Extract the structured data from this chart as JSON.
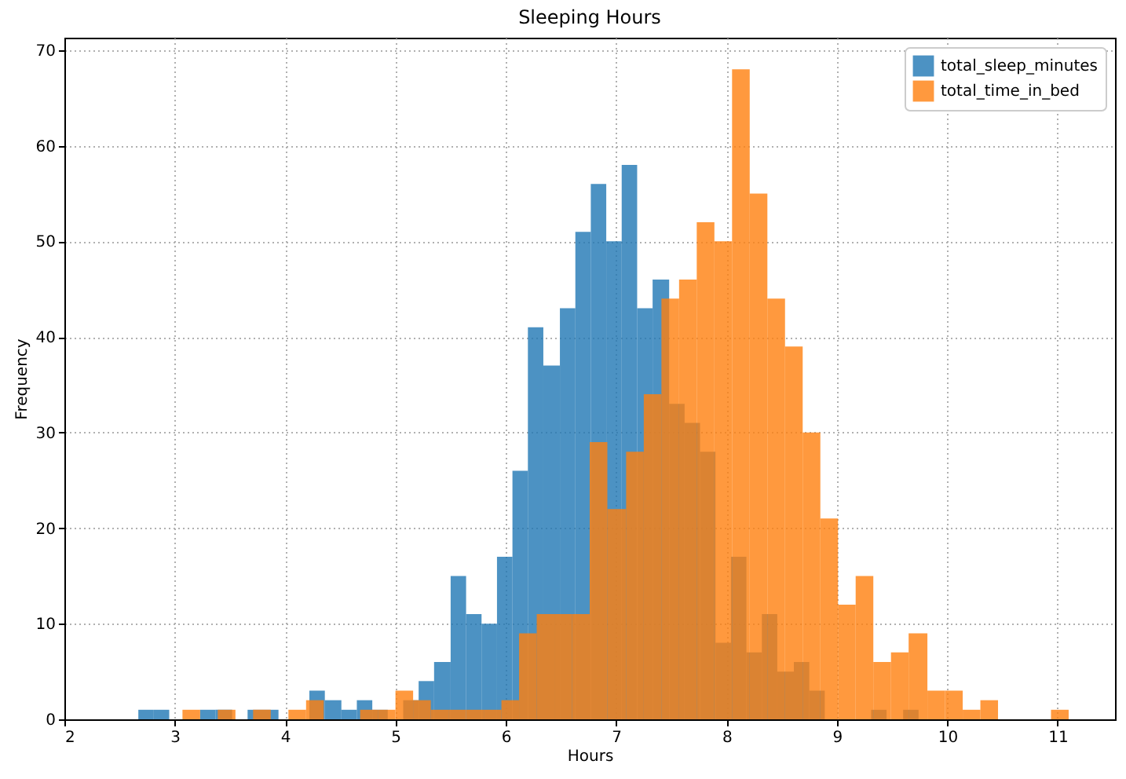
{
  "chart_data": {
    "type": "histogram",
    "title": "Sleeping Hours",
    "xlabel": "Hours",
    "ylabel": "Frequency",
    "xlim": [
      2,
      11.52
    ],
    "xticks": [
      2,
      3,
      4,
      5,
      6,
      7,
      8,
      9,
      10,
      11
    ],
    "ylim": [
      0,
      71.3
    ],
    "yticks": [
      0,
      10,
      20,
      30,
      40,
      50,
      60,
      70
    ],
    "grid": true,
    "legend": "top right",
    "series": [
      {
        "name": "total_sleep_minutes",
        "color": "#1f77b4",
        "values": [
          1,
          1,
          0,
          1,
          1,
          0,
          1,
          1,
          0,
          3,
          2,
          1,
          2,
          1,
          0,
          2,
          4,
          6,
          15,
          11,
          10,
          17,
          26,
          41,
          37,
          43,
          51,
          56,
          50,
          58,
          43,
          46,
          33,
          31,
          28,
          8,
          17,
          7,
          11,
          5,
          6,
          3,
          0,
          1,
          0,
          1
        ]
      },
      {
        "name": "total_time_in_bed",
        "color": "#ff7f0e",
        "bins": [
          3.07,
          3.23,
          3.39,
          3.55,
          3.71,
          3.87,
          4.03,
          4.19,
          4.35,
          4.68,
          4.84,
          5.0,
          5.16,
          5.32,
          5.48,
          5.64,
          5.8,
          5.96,
          6.12,
          6.28,
          6.44,
          6.6,
          6.76,
          6.92,
          7.09,
          7.25,
          7.41,
          7.57,
          7.73,
          7.89,
          8.05,
          8.21,
          8.37,
          8.53,
          8.69,
          8.85,
          9.01,
          9.17,
          9.33,
          9.49,
          9.65,
          9.82,
          9.98,
          10.14,
          10.3,
          10.46,
          10.94,
          11.1
        ],
        "values": [
          1,
          0,
          1,
          0,
          1,
          0,
          1,
          2,
          0,
          1,
          1,
          3,
          2,
          1,
          1,
          1,
          1,
          2,
          9,
          11,
          11,
          11,
          29,
          22,
          28,
          34,
          44,
          46,
          52,
          50,
          68,
          55,
          44,
          39,
          30,
          21,
          12,
          15,
          6,
          7,
          9,
          3,
          3,
          1,
          2,
          0,
          1
        ]
      }
    ],
    "bins": [
      2.67,
      2.81,
      2.95,
      3.23,
      3.37,
      3.52,
      3.66,
      3.8,
      3.94,
      4.22,
      4.36,
      4.51,
      4.65,
      4.79,
      4.93,
      5.07,
      5.21,
      5.35,
      5.5,
      5.64,
      5.78,
      5.92,
      6.06,
      6.2,
      6.34,
      6.49,
      6.63,
      6.77,
      6.91,
      7.05,
      7.19,
      7.33,
      7.48,
      7.62,
      7.76,
      7.9,
      8.04,
      8.18,
      8.32,
      8.46,
      8.61,
      8.75,
      8.89,
      9.31,
      9.45,
      9.6,
      9.74
    ]
  }
}
